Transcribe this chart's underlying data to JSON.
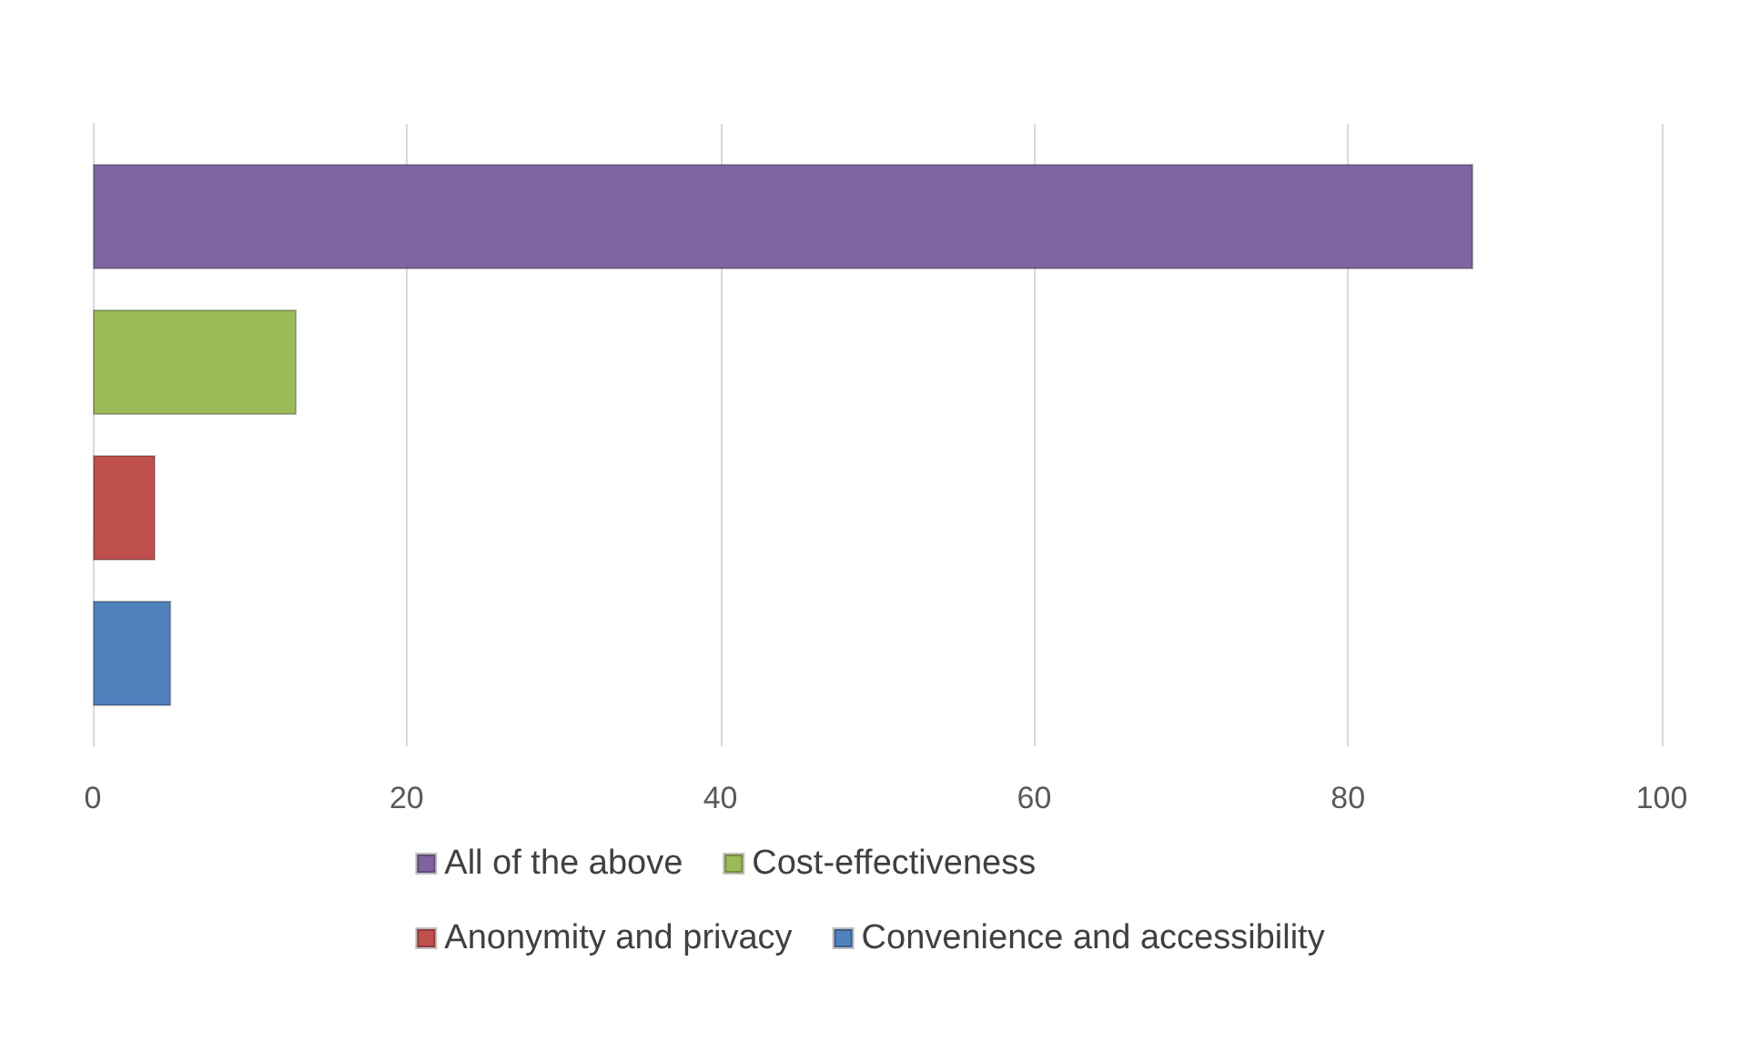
{
  "chart_data": {
    "type": "bar",
    "orientation": "horizontal",
    "categories": [
      null
    ],
    "series": [
      {
        "name": "All of the above",
        "color": "#8064a2",
        "values": [
          88
        ]
      },
      {
        "name": "Cost-effectiveness",
        "color": "#9bbb59",
        "values": [
          13
        ]
      },
      {
        "name": "Anonymity and privacy",
        "color": "#c0504d",
        "values": [
          4
        ]
      },
      {
        "name": "Convenience and accessibility",
        "color": "#4f81bd",
        "values": [
          5
        ]
      }
    ],
    "xlim": [
      0,
      100
    ],
    "xticks": [
      0,
      20,
      40,
      60,
      80,
      100
    ],
    "grid": "x",
    "legend": "bottom"
  }
}
